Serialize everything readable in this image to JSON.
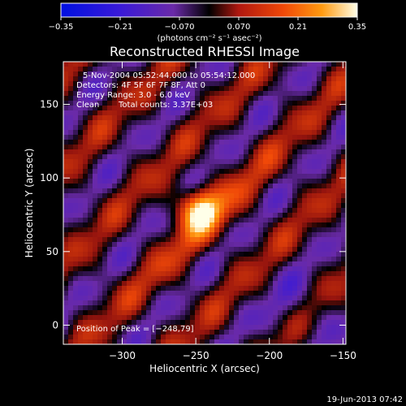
{
  "chart_data": {
    "type": "heatmap",
    "title": "Reconstructed RHESSI Image",
    "xlabel": "Heliocentric X (arcsec)",
    "ylabel": "Heliocentric Y (arcsec)",
    "xlim": [
      -340,
      -148
    ],
    "ylim": [
      -13,
      179
    ],
    "x_ticks": [
      -300,
      -250,
      -200,
      -150
    ],
    "y_ticks": [
      0,
      50,
      100,
      150
    ],
    "x_tick_labels": [
      "−300",
      "−250",
      "−200",
      "−150"
    ],
    "y_tick_labels": [
      "0",
      "50",
      "100",
      "150"
    ],
    "colorbar": {
      "ticks": [
        -0.35,
        -0.21,
        -0.07,
        0.07,
        0.21,
        0.35
      ],
      "tick_labels": [
        "−0.35",
        "−0.21",
        "−0.070",
        "0.070",
        "0.21",
        "0.35"
      ],
      "label": "(photons cm⁻² s⁻¹ asec⁻²)",
      "range": [
        -0.35,
        0.35
      ]
    },
    "annotations": [
      "5-Nov-2004 05:52:44.000 to 05:54:12.000",
      "Detectors: 4F 5F 6F 7F 8F, Att 0",
      "Energy Range: 3.0 - 6.0 keV",
      "Clean",
      "Total counts: 3.37E+03",
      "Position of Peak = [−248,79]"
    ],
    "peak": {
      "x": -248,
      "y": 79,
      "value": 0.35
    }
  },
  "footer": {
    "timestamp": "19-Jun-2013 07:42"
  }
}
